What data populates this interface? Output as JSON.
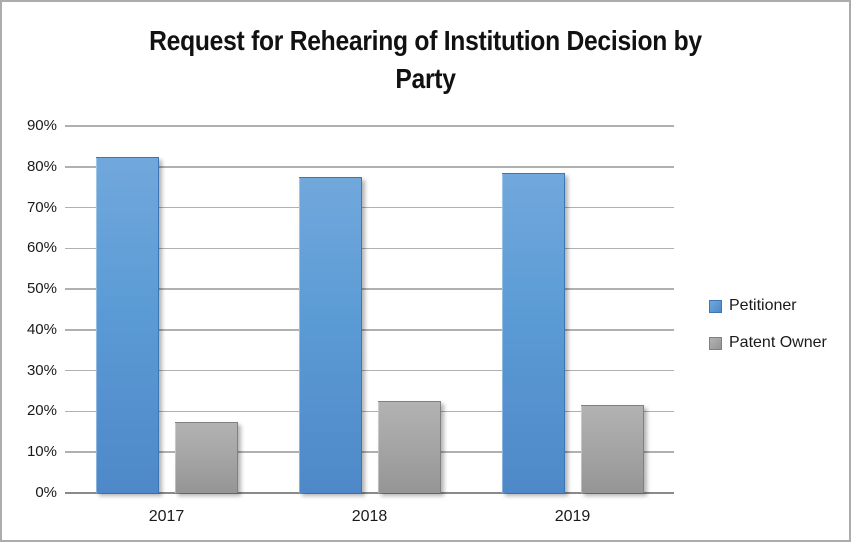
{
  "chart_data": {
    "type": "bar",
    "title": "Request for Rehearing of Institution Decision by Party",
    "title_lines": [
      "Request for Rehearing of Institution Decision by",
      "Party"
    ],
    "categories": [
      "2017",
      "2018",
      "2019"
    ],
    "series": [
      {
        "name": "Petitioner",
        "values": [
          82.5,
          77.5,
          78.5
        ],
        "color": "#5B9BD5",
        "gradient_top": "#71A8DC",
        "gradient_bottom": "#4E88C8",
        "border_color": "#3D76B4"
      },
      {
        "name": "Patent Owner",
        "values": [
          17.5,
          22.5,
          21.5
        ],
        "color": "#A6A6A6",
        "gradient_top": "#B2B2B2",
        "gradient_bottom": "#959595",
        "border_color": "#808080"
      }
    ],
    "xlabel": "",
    "ylabel": "",
    "ylim": [
      0,
      90
    ],
    "ytick_step": 10,
    "ytick_labels": [
      "0%",
      "10%",
      "20%",
      "30%",
      "40%",
      "50%",
      "60%",
      "70%",
      "80%",
      "90%"
    ],
    "grid": true,
    "legend_position": "right",
    "colors": {
      "gridline": "#B0B0B0",
      "axis_line": "#8A8A8A",
      "text": "#1A1A1A",
      "frame_border": "#ACACAC",
      "background": "#FFFFFF"
    }
  }
}
